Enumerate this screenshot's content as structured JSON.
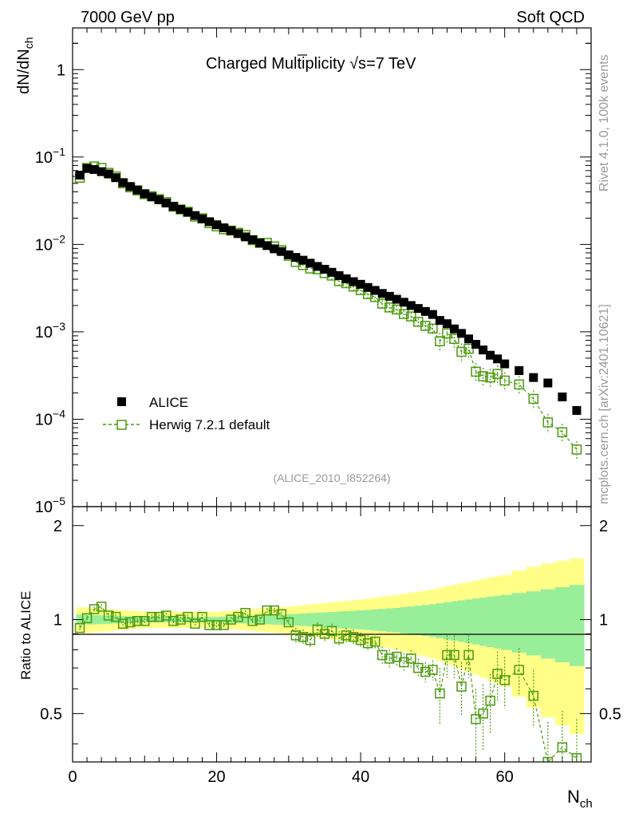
{
  "header": {
    "left": "7000 GeV pp",
    "right": "Soft QCD",
    "title_pre": "Charged Multiplicity ",
    "title_sqrt": "√s",
    "title_post": "=7 TeV"
  },
  "side": {
    "rivet": "Rivet 4.1.0,  100k events",
    "mcplots": "mcplots.cern.ch [arXiv:2401.10621]"
  },
  "analysis_id": "(ALICE_2010_I852264)",
  "axes": {
    "ylabel_main": "dN/dN",
    "ylabel_main_sub": "ch",
    "ylabel_ratio": "Ratio to ALICE",
    "xlabel": "N",
    "xlabel_sub": "ch",
    "x_ticks": [
      "0",
      "20",
      "40",
      "60"
    ],
    "y_ticks_main": [
      {
        "label": "1",
        "exp": ""
      },
      {
        "label": "10",
        "exp": "−1"
      },
      {
        "label": "10",
        "exp": "−2"
      },
      {
        "label": "10",
        "exp": "−3"
      },
      {
        "label": "10",
        "exp": "−4"
      },
      {
        "label": "10",
        "exp": "−5"
      }
    ],
    "y_ticks_ratio": [
      "2",
      "1",
      "0.5"
    ]
  },
  "legend": {
    "data_label": "ALICE",
    "mc_label": "Herwig 7.2.1 default"
  },
  "colors": {
    "data": "#000000",
    "mc": "#4a9a0c",
    "band_inner": "#99ee99",
    "band_outer": "#ffff88"
  },
  "chart_data": {
    "type": "scatter",
    "title": "Charged Multiplicity √s=7 TeV",
    "xlabel": "N_ch",
    "ylabel": "dN/dN_ch",
    "xlim": [
      0,
      72
    ],
    "ylim": [
      1e-05,
      3
    ],
    "yscale": "log",
    "ratio_ylim": [
      0.35,
      2.3
    ],
    "x_data": [
      1,
      2,
      3,
      4,
      5,
      6,
      7,
      8,
      9,
      10,
      11,
      12,
      13,
      14,
      15,
      16,
      17,
      18,
      19,
      20,
      21,
      22,
      23,
      24,
      25,
      26,
      27,
      28,
      29,
      30,
      31,
      32,
      33,
      34,
      35,
      36,
      37,
      38,
      39,
      40,
      41,
      42,
      43,
      44,
      45,
      46,
      47,
      48,
      49,
      50,
      51,
      52,
      53,
      54,
      55,
      56,
      57,
      58,
      59,
      60,
      62,
      64,
      66,
      68,
      70
    ],
    "series": [
      {
        "name": "ALICE",
        "values": [
          0.062,
          0.074,
          0.072,
          0.068,
          0.064,
          0.058,
          0.051,
          0.046,
          0.042,
          0.038,
          0.035,
          0.0325,
          0.0298,
          0.0272,
          0.0252,
          0.0233,
          0.0214,
          0.0196,
          0.0182,
          0.0168,
          0.0155,
          0.0144,
          0.0133,
          0.0122,
          0.0113,
          0.0104,
          0.0097,
          0.0089,
          0.0083,
          0.0076,
          0.0071,
          0.0066,
          0.0061,
          0.0056,
          0.0052,
          0.0048,
          0.0044,
          0.00405,
          0.00375,
          0.0035,
          0.00322,
          0.00298,
          0.00275,
          0.00255,
          0.00236,
          0.00218,
          0.002,
          0.00185,
          0.00171,
          0.00158,
          0.00135,
          0.00124,
          0.00108,
          0.00096,
          0.00083,
          0.00072,
          0.00062,
          0.00054,
          0.00049,
          0.00043,
          0.00036,
          0.0003,
          0.00026,
          0.00018,
          0.000126
        ]
      },
      {
        "name": "Herwig 7.2.1 default",
        "values": [
          0.058,
          0.075,
          0.078,
          0.075,
          0.066,
          0.06,
          0.05,
          0.045,
          0.0415,
          0.0375,
          0.0356,
          0.033,
          0.0305,
          0.027,
          0.0251,
          0.0237,
          0.0208,
          0.0199,
          0.0175,
          0.0161,
          0.0149,
          0.0144,
          0.0136,
          0.0128,
          0.0112,
          0.0104,
          0.0104,
          0.0095,
          0.0086,
          0.0074,
          0.0063,
          0.0058,
          0.0053,
          0.0052,
          0.0047,
          0.0044,
          0.0038,
          0.0036,
          0.0033,
          0.003,
          0.0027,
          0.0025,
          0.0021,
          0.0019,
          0.0018,
          0.0016,
          0.0015,
          0.0013,
          0.00117,
          0.00109,
          0.00078,
          0.00096,
          0.00083,
          0.00059,
          0.00064,
          0.00035,
          0.00031,
          0.0003,
          0.00033,
          0.000277,
          0.00025,
          0.000171,
          9.2e-05,
          7.1e-05,
          4.5e-05
        ]
      }
    ],
    "ratio": {
      "name": "Herwig 7.2.1 default / ALICE",
      "values": [
        0.94,
        1.01,
        1.08,
        1.1,
        1.03,
        1.02,
        0.97,
        0.98,
        0.99,
        0.99,
        1.02,
        1.02,
        1.03,
        0.99,
        1.0,
        1.02,
        0.97,
        1.02,
        0.96,
        0.96,
        0.96,
        1.0,
        1.02,
        1.05,
        0.99,
        1.0,
        1.07,
        1.07,
        1.04,
        0.98,
        0.89,
        0.88,
        0.86,
        0.93,
        0.9,
        0.92,
        0.87,
        0.89,
        0.88,
        0.86,
        0.84,
        0.85,
        0.77,
        0.75,
        0.76,
        0.73,
        0.75,
        0.7,
        0.68,
        0.69,
        0.58,
        0.77,
        0.77,
        0.61,
        0.77,
        0.48,
        0.5,
        0.55,
        0.67,
        0.64,
        0.69,
        0.57,
        0.35,
        0.39,
        0.36
      ],
      "band_outer_halfwidth_x": [
        0,
        10,
        20,
        30,
        40,
        45,
        50,
        55,
        60,
        65,
        70
      ],
      "band_outer_halfwidth": [
        0.1,
        0.06,
        0.06,
        0.1,
        0.16,
        0.2,
        0.25,
        0.32,
        0.39,
        0.5,
        0.57
      ],
      "band_inner_halfwidth": [
        0.04,
        0.02,
        0.02,
        0.04,
        0.07,
        0.09,
        0.12,
        0.16,
        0.2,
        0.24,
        0.29
      ]
    }
  }
}
